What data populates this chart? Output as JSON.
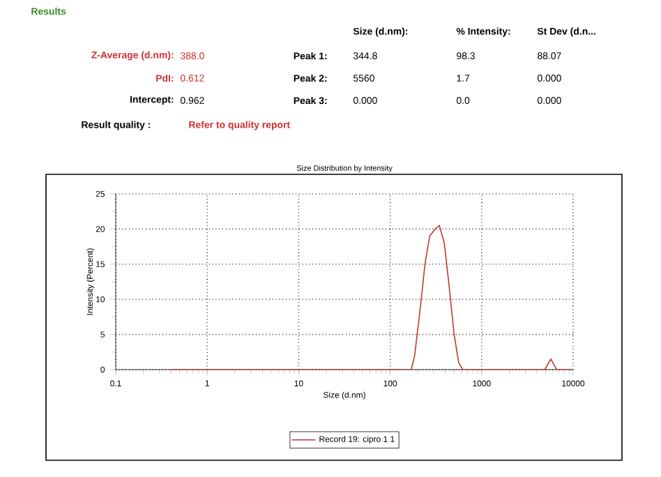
{
  "chart_data": {
    "type": "line",
    "title": "Size Distribution by Intensity",
    "xlabel": "Size (d.nm)",
    "ylabel": "Intensity (Percent)",
    "log": "x",
    "xlim": [
      0.1,
      10000
    ],
    "xticks": [
      0.1,
      1,
      10,
      100,
      1000,
      10000
    ],
    "ylim": [
      0,
      25
    ],
    "yticks": [
      0,
      5,
      10,
      15,
      20,
      25
    ],
    "grid": true,
    "legend": "bottom",
    "marker": "none",
    "line_style": "solid",
    "x": [
      0.41,
      1,
      10,
      100,
      170,
      185,
      210,
      240,
      270,
      310,
      345,
      390,
      440,
      500,
      560,
      620,
      700,
      1000,
      4900,
      5700,
      6600,
      10000
    ],
    "series": [
      {
        "name": "Record 19: cipro 1 1",
        "color": "#c0392b",
        "values": [
          0,
          0,
          0,
          0,
          0,
          2,
          8,
          15,
          19,
          20,
          20.5,
          18,
          12,
          5,
          1,
          0,
          0,
          0,
          0,
          1.5,
          0,
          0
        ]
      }
    ],
    "annotations": [
      "Results",
      "Size (d.nm):",
      "% Intensity:",
      "St Dev (d.n...",
      "Z-Average (d.nm):",
      "388.0",
      "Peak 1:",
      "344.8",
      "98.3",
      "88.07",
      "PdI:",
      "0.612",
      "Peak 2:",
      "5560",
      "1.7",
      "0.000",
      "Intercept:",
      "0.962",
      "Peak 3:",
      "0.000",
      "0.0",
      "0.000",
      "Result quality :",
      "Refer to quality report"
    ]
  }
}
